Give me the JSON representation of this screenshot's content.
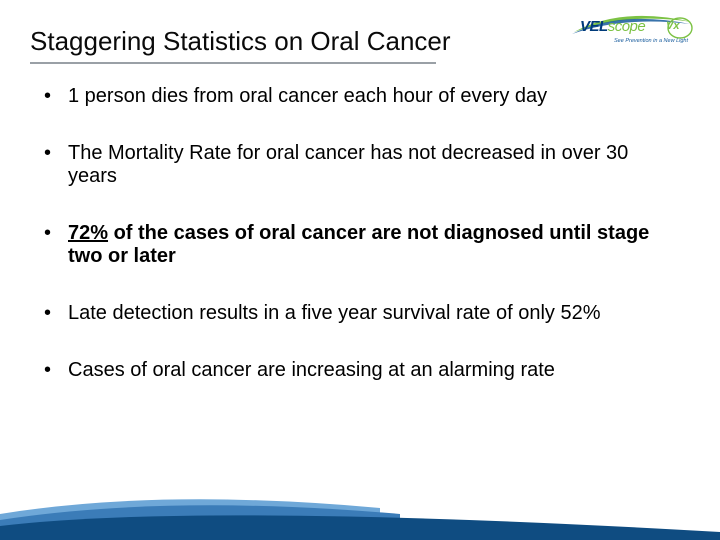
{
  "title": "Staggering Statistics on Oral Cancer",
  "logo": {
    "vel": "VEL",
    "scope": "scope",
    "vx": "Vx",
    "tagline": "See Prevention in a New Light",
    "swoosh_color_dark": "#165a9c",
    "swoosh_color_green": "#7cc244"
  },
  "bullets": [
    {
      "text": "1 person dies from oral cancer each hour of every day",
      "bold": false,
      "underline_prefix": ""
    },
    {
      "text": "The Mortality Rate for oral cancer has not decreased in over 30 years",
      "bold": false,
      "underline_prefix": ""
    },
    {
      "text": "of the cases of oral cancer are not diagnosed until stage two or later",
      "bold": true,
      "underline_prefix": "72% "
    },
    {
      "text": "Late detection results in a five year survival rate of only 52%",
      "bold": false,
      "underline_prefix": ""
    },
    {
      "text": "Cases of oral cancer are increasing at an alarming rate",
      "bold": false,
      "underline_prefix": ""
    }
  ],
  "colors": {
    "title_rule": "#9aa0a6",
    "text": "#000000",
    "background": "#ffffff",
    "footer_blue_light": "#6fa8d8",
    "footer_blue_mid": "#3b7cb8",
    "footer_blue_dark": "#0f4c81"
  }
}
